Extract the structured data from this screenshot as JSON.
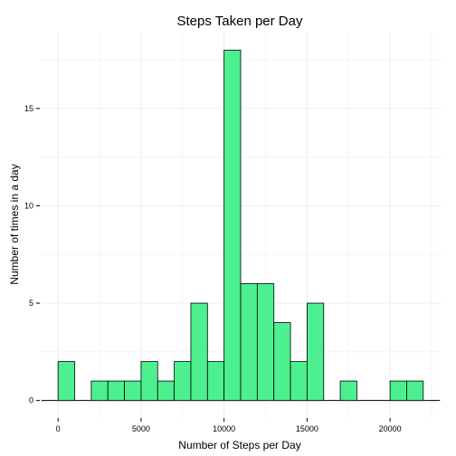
{
  "chart_data": {
    "type": "bar",
    "title": "Steps Taken per Day",
    "xlabel": "Number of Steps per Day",
    "ylabel": "Number of times in a day",
    "xlim": [
      -1100,
      23100
    ],
    "ylim": [
      -0.9,
      18.9
    ],
    "x_ticks": [
      0,
      5000,
      10000,
      15000,
      20000
    ],
    "y_ticks": [
      0,
      5,
      10,
      15
    ],
    "bin_width": 1000,
    "grid": true,
    "colors": {
      "bar_fill": "#4cf090",
      "bar_stroke": "#000000"
    },
    "bins": [
      {
        "start": 0,
        "end": 1000,
        "count": 2
      },
      {
        "start": 1000,
        "end": 2000,
        "count": 0
      },
      {
        "start": 2000,
        "end": 3000,
        "count": 1
      },
      {
        "start": 3000,
        "end": 4000,
        "count": 1
      },
      {
        "start": 4000,
        "end": 5000,
        "count": 1
      },
      {
        "start": 5000,
        "end": 6000,
        "count": 2
      },
      {
        "start": 6000,
        "end": 7000,
        "count": 1
      },
      {
        "start": 7000,
        "end": 8000,
        "count": 2
      },
      {
        "start": 8000,
        "end": 9000,
        "count": 5
      },
      {
        "start": 9000,
        "end": 10000,
        "count": 2
      },
      {
        "start": 10000,
        "end": 11000,
        "count": 18
      },
      {
        "start": 11000,
        "end": 12000,
        "count": 6
      },
      {
        "start": 12000,
        "end": 13000,
        "count": 6
      },
      {
        "start": 13000,
        "end": 14000,
        "count": 4
      },
      {
        "start": 14000,
        "end": 15000,
        "count": 2
      },
      {
        "start": 15000,
        "end": 16000,
        "count": 5
      },
      {
        "start": 16000,
        "end": 17000,
        "count": 0
      },
      {
        "start": 17000,
        "end": 18000,
        "count": 1
      },
      {
        "start": 18000,
        "end": 19000,
        "count": 0
      },
      {
        "start": 19000,
        "end": 20000,
        "count": 0
      },
      {
        "start": 20000,
        "end": 21000,
        "count": 1
      },
      {
        "start": 21000,
        "end": 22000,
        "count": 1
      }
    ]
  }
}
